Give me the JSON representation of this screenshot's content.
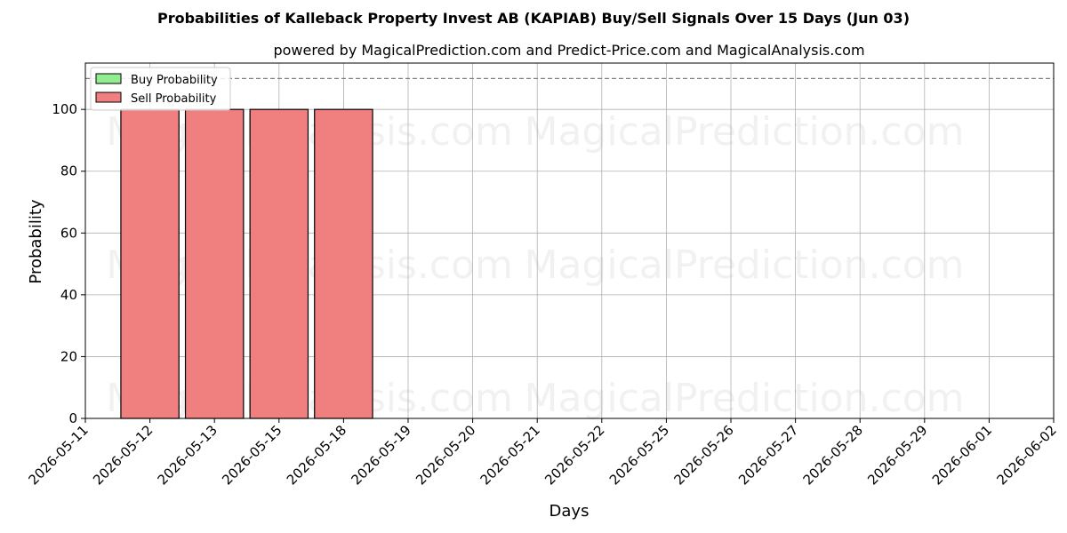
{
  "chart_data": {
    "type": "bar",
    "title": "Probabilities of Kalleback Property Invest AB (KAPIAB) Buy/Sell Signals Over 15 Days (Jun 03)",
    "subtitle": "powered by MagicalPrediction.com and Predict-Price.com and MagicalAnalysis.com",
    "xlabel": "Days",
    "ylabel": "Probability",
    "ylim": [
      0,
      115
    ],
    "yticks": [
      0,
      20,
      40,
      60,
      80,
      100
    ],
    "threshold": 110,
    "grid": true,
    "legend_position": "top-left",
    "x_ticks": [
      "2026-05-11",
      "2026-05-12",
      "2026-05-13",
      "2026-05-15",
      "2026-05-18",
      "2026-05-19",
      "2026-05-20",
      "2026-05-21",
      "2026-05-22",
      "2026-05-25",
      "2026-05-26",
      "2026-05-27",
      "2026-05-28",
      "2026-05-29",
      "2026-06-01",
      "2026-06-02"
    ],
    "categories": [
      "2026-05-12",
      "2026-05-13",
      "2026-05-15",
      "2026-05-18"
    ],
    "series": [
      {
        "name": "Buy Probability",
        "color": "#90ee90",
        "values": [
          0,
          0,
          0,
          0
        ]
      },
      {
        "name": "Sell Probability",
        "color": "#f08080",
        "values": [
          100,
          100,
          100,
          100
        ]
      }
    ],
    "watermarks": [
      "MagicalAnalysis.com",
      "MagicalPrediction.com"
    ]
  }
}
